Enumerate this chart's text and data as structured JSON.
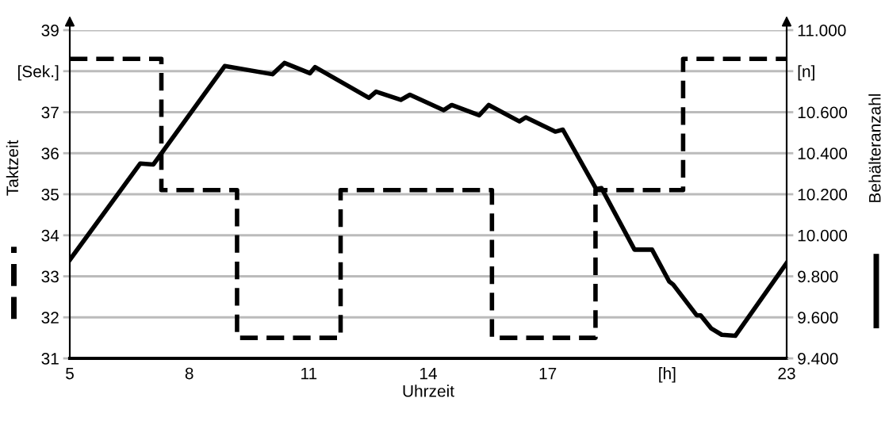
{
  "chart_data": {
    "type": "line",
    "xlabel": "Uhrzeit",
    "ylabel": "Taktzeit",
    "y2label": "Behälteranzahl",
    "xlim": [
      5,
      23
    ],
    "xticks": [
      5,
      8,
      11,
      14,
      17,
      {
        "value": 20,
        "label": "[h]"
      },
      23
    ],
    "ylim": [
      31,
      39
    ],
    "yticks": [
      31,
      32,
      33,
      34,
      35,
      36,
      37,
      {
        "value": 38,
        "label": "[Sek.]"
      },
      39
    ],
    "y2lim": [
      9400,
      11000
    ],
    "y2ticks": [
      {
        "value": 9400,
        "label": "9.400"
      },
      {
        "value": 9600,
        "label": "9.600"
      },
      {
        "value": 9800,
        "label": "9.800"
      },
      {
        "value": 10000,
        "label": "10.000"
      },
      {
        "value": 10200,
        "label": "10.200"
      },
      {
        "value": 10400,
        "label": "10.400"
      },
      {
        "value": 10600,
        "label": "10.600"
      },
      {
        "value": 10800,
        "label": "[n]"
      },
      {
        "value": 11000,
        "label": "11.000"
      }
    ],
    "grid": "y",
    "series": [
      {
        "type": "step",
        "axis": "y",
        "color": "#000000",
        "line_style": "dashed",
        "x": [
          5,
          7.3,
          9.2,
          11.8,
          15.6,
          18.2,
          20.4,
          23
        ],
        "values": [
          38.3,
          35.1,
          31.5,
          35.1,
          31.5,
          35.1,
          38.3,
          38.3
        ]
      },
      {
        "axis": "y2",
        "color": "#000000",
        "line_style": "solid",
        "x": [
          5,
          6.77,
          7.1,
          8.89,
          10.09,
          10.39,
          11.03,
          11.16,
          12.51,
          12.69,
          13.31,
          13.54,
          14.39,
          14.59,
          15.28,
          15.52,
          16.29,
          16.45,
          17.19,
          17.38,
          18.22,
          18.35,
          19.18,
          19.62,
          20.05,
          20.15,
          20.74,
          20.84,
          21.11,
          21.37,
          21.71,
          23
        ],
        "values": [
          9880,
          10350,
          10345,
          10825,
          10785,
          10840,
          10790,
          10820,
          10670,
          10700,
          10660,
          10685,
          10610,
          10635,
          10585,
          10635,
          10555,
          10575,
          10505,
          10515,
          10225,
          10230,
          9930,
          9930,
          9775,
          9760,
          9610,
          9610,
          9545,
          9515,
          9510,
          9865
        ]
      }
    ]
  }
}
